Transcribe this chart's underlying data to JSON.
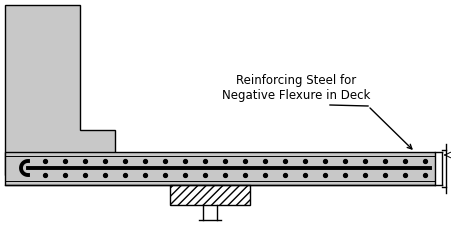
{
  "bg_color": "#ffffff",
  "line_color": "#000000",
  "gray_fill": "#c8c8c8",
  "annotation_text": "Reinforcing Steel for\nNegative Flexure in Deck",
  "annotation_fontsize": 8.5
}
